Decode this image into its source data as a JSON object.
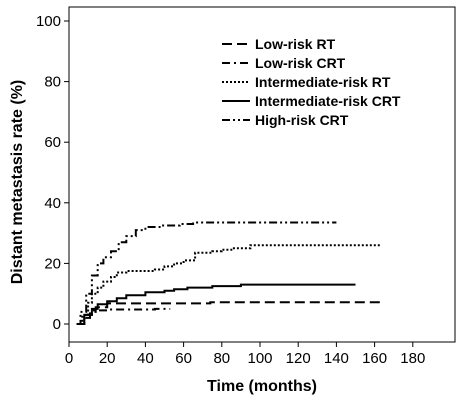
{
  "chart_data": {
    "type": "line",
    "xlabel": "Time (months)",
    "ylabel": "Distant metastasis rate (%)",
    "xlim": [
      0,
      180
    ],
    "ylim": [
      0,
      100
    ],
    "xticks": [
      0,
      20,
      40,
      60,
      80,
      100,
      120,
      140,
      160,
      180
    ],
    "yticks": [
      0,
      20,
      40,
      60,
      80,
      100
    ],
    "grid": false,
    "legend_position": "top-right",
    "series": [
      {
        "name": "Low-risk RT",
        "dash": "dashed",
        "x": [
          4,
          8,
          8,
          11,
          11,
          14,
          14,
          20,
          20,
          74,
          74,
          163
        ],
        "y": [
          0,
          0,
          2,
          2,
          4,
          4,
          5.5,
          5.5,
          6.8,
          6.8,
          7.2,
          7.2
        ]
      },
      {
        "name": "Low-risk CRT",
        "dash": "dash-dot",
        "x": [
          4,
          8,
          8,
          12,
          12,
          20,
          20,
          45,
          45,
          53
        ],
        "y": [
          0,
          0,
          3,
          3,
          4.5,
          4.5,
          4.8,
          4.8,
          5,
          5
        ]
      },
      {
        "name": "Intermediate-risk RT",
        "dash": "dotted",
        "x": [
          4,
          7,
          7,
          10,
          10,
          12,
          12,
          15,
          15,
          18,
          18,
          22,
          22,
          25,
          25,
          30,
          30,
          45,
          45,
          50,
          50,
          55,
          55,
          60,
          60,
          66,
          66,
          75,
          75,
          80,
          80,
          85,
          85,
          95,
          95,
          163
        ],
        "y": [
          0,
          0,
          3,
          3,
          7,
          7,
          10,
          10,
          12,
          12,
          14,
          14,
          15.5,
          15.5,
          17,
          17,
          17.5,
          17.5,
          18,
          18,
          19,
          19,
          20,
          20,
          21,
          21,
          23.5,
          23.5,
          24,
          24,
          24.5,
          24.5,
          25,
          25,
          26,
          26
        ]
      },
      {
        "name": "Intermediate-risk CRT",
        "dash": "solid",
        "x": [
          4,
          8,
          8,
          12,
          12,
          15,
          15,
          20,
          20,
          25,
          25,
          30,
          30,
          40,
          40,
          50,
          50,
          55,
          55,
          62,
          62,
          75,
          75,
          90,
          90,
          150
        ],
        "y": [
          0,
          0,
          3,
          3,
          5,
          5,
          6.5,
          6.5,
          7.5,
          7.5,
          8.5,
          8.5,
          9.5,
          9.5,
          10.5,
          10.5,
          11,
          11,
          11.5,
          11.5,
          12,
          12,
          12.5,
          12.5,
          13,
          13
        ]
      },
      {
        "name": "High-risk CRT",
        "dash": "dash-dot-dot",
        "x": [
          4,
          6,
          6,
          9,
          9,
          12,
          12,
          15,
          15,
          18,
          18,
          22,
          22,
          26,
          26,
          30,
          30,
          35,
          35,
          40,
          40,
          48,
          48,
          58,
          58,
          65,
          65,
          140
        ],
        "y": [
          0,
          0,
          4,
          4,
          10,
          10,
          16,
          16,
          20,
          20,
          22,
          22,
          24,
          24,
          27,
          27,
          29,
          29,
          31,
          31,
          32,
          32,
          32.5,
          32.5,
          33,
          33,
          33.5,
          33.5
        ]
      }
    ]
  }
}
